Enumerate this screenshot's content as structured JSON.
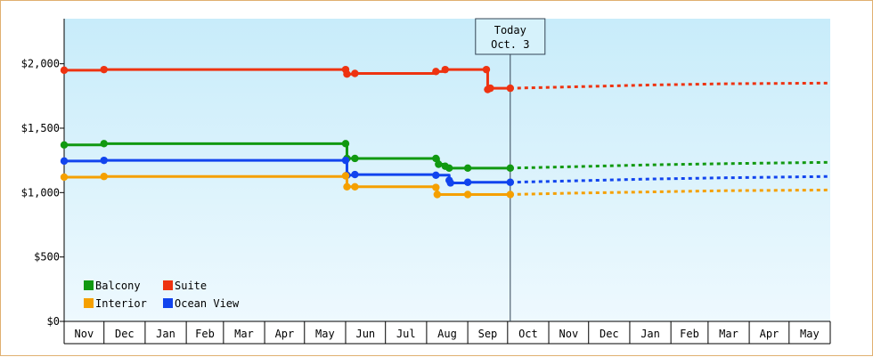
{
  "chart_data": {
    "type": "line",
    "title": "",
    "xlabel": "",
    "ylabel": "",
    "ylim": [
      0,
      2350
    ],
    "y_ticks": [
      {
        "value": 0,
        "label": "$0"
      },
      {
        "value": 500,
        "label": "$500"
      },
      {
        "value": 1000,
        "label": "$1,000"
      },
      {
        "value": 1500,
        "label": "$1,500"
      },
      {
        "value": 2000,
        "label": "$2,000"
      }
    ],
    "x_range": [
      "2012-11-01",
      "2014-05-31"
    ],
    "months": [
      {
        "label": "Nov",
        "start": "2012-11-01"
      },
      {
        "label": "Dec",
        "start": "2012-12-01"
      },
      {
        "label": "Jan",
        "start": "2013-01-01"
      },
      {
        "label": "Feb",
        "start": "2013-02-01"
      },
      {
        "label": "Mar",
        "start": "2013-03-01"
      },
      {
        "label": "Apr",
        "start": "2013-04-01"
      },
      {
        "label": "May",
        "start": "2013-05-01"
      },
      {
        "label": "Jun",
        "start": "2013-06-01"
      },
      {
        "label": "Jul",
        "start": "2013-07-01"
      },
      {
        "label": "Aug",
        "start": "2013-08-01"
      },
      {
        "label": "Sep",
        "start": "2013-09-01"
      },
      {
        "label": "Oct",
        "start": "2013-10-01"
      },
      {
        "label": "Nov",
        "start": "2013-11-01"
      },
      {
        "label": "Dec",
        "start": "2013-12-01"
      },
      {
        "label": "Jan",
        "start": "2014-01-01"
      },
      {
        "label": "Feb",
        "start": "2014-02-01"
      },
      {
        "label": "Mar",
        "start": "2014-03-01"
      },
      {
        "label": "Apr",
        "start": "2014-04-01"
      },
      {
        "label": "May",
        "start": "2014-05-01"
      }
    ],
    "today": {
      "date": "2013-10-03",
      "line1": "Today",
      "line2": "Oct. 3"
    },
    "series": [
      {
        "name": "Suite",
        "color": "#ee3311",
        "points": [
          [
            "2012-11-01",
            1950
          ],
          [
            "2012-12-01",
            1955
          ],
          [
            "2013-06-01",
            1955
          ],
          [
            "2013-06-02",
            1920
          ],
          [
            "2013-06-08",
            1925
          ],
          [
            "2013-08-08",
            1940
          ],
          [
            "2013-08-15",
            1955
          ],
          [
            "2013-09-15",
            1955
          ],
          [
            "2013-09-16",
            1800
          ],
          [
            "2013-09-18",
            1810
          ],
          [
            "2013-10-03",
            1810
          ]
        ],
        "forecast": [
          [
            "2013-10-03",
            1810
          ],
          [
            "2013-11-15",
            1820
          ],
          [
            "2014-01-15",
            1835
          ],
          [
            "2014-03-15",
            1845
          ],
          [
            "2014-05-31",
            1850
          ]
        ]
      },
      {
        "name": "Balcony",
        "color": "#119911",
        "points": [
          [
            "2012-11-01",
            1370
          ],
          [
            "2012-12-01",
            1380
          ],
          [
            "2013-06-01",
            1380
          ],
          [
            "2013-06-02",
            1265
          ],
          [
            "2013-06-08",
            1265
          ],
          [
            "2013-08-08",
            1265
          ],
          [
            "2013-08-10",
            1220
          ],
          [
            "2013-08-15",
            1205
          ],
          [
            "2013-08-18",
            1190
          ],
          [
            "2013-09-01",
            1190
          ],
          [
            "2013-10-03",
            1190
          ]
        ],
        "forecast": [
          [
            "2013-10-03",
            1190
          ],
          [
            "2013-11-15",
            1200
          ],
          [
            "2014-01-15",
            1215
          ],
          [
            "2014-03-15",
            1225
          ],
          [
            "2014-05-31",
            1235
          ]
        ]
      },
      {
        "name": "Ocean View",
        "color": "#1144ee",
        "points": [
          [
            "2012-11-01",
            1245
          ],
          [
            "2012-12-01",
            1250
          ],
          [
            "2013-06-01",
            1250
          ],
          [
            "2013-06-02",
            1135
          ],
          [
            "2013-06-08",
            1140
          ],
          [
            "2013-08-08",
            1135
          ],
          [
            "2013-08-18",
            1095
          ],
          [
            "2013-08-19",
            1075
          ],
          [
            "2013-09-01",
            1080
          ],
          [
            "2013-10-03",
            1080
          ]
        ],
        "forecast": [
          [
            "2013-10-03",
            1080
          ],
          [
            "2013-11-15",
            1090
          ],
          [
            "2014-01-15",
            1105
          ],
          [
            "2014-03-15",
            1115
          ],
          [
            "2014-05-31",
            1125
          ]
        ]
      },
      {
        "name": "Interior",
        "color": "#f5a000",
        "points": [
          [
            "2012-11-01",
            1120
          ],
          [
            "2012-12-01",
            1125
          ],
          [
            "2013-06-01",
            1130
          ],
          [
            "2013-06-02",
            1045
          ],
          [
            "2013-06-08",
            1045
          ],
          [
            "2013-08-08",
            1040
          ],
          [
            "2013-08-09",
            985
          ],
          [
            "2013-09-01",
            985
          ],
          [
            "2013-10-03",
            985
          ]
        ],
        "forecast": [
          [
            "2013-10-03",
            985
          ],
          [
            "2013-11-15",
            995
          ],
          [
            "2014-01-15",
            1005
          ],
          [
            "2014-03-15",
            1015
          ],
          [
            "2014-05-31",
            1020
          ]
        ]
      }
    ],
    "legend": {
      "placement": "bottom-left",
      "rows": [
        [
          {
            "name": "Balcony",
            "color": "#119911"
          },
          {
            "name": "Suite",
            "color": "#ee3311"
          }
        ],
        [
          {
            "name": "Interior",
            "color": "#f5a000"
          },
          {
            "name": "Ocean View",
            "color": "#1144ee"
          }
        ]
      ]
    },
    "forecast_style": "dotted",
    "background": {
      "top": "#c8ecfa",
      "bottom": "#eef9fe"
    },
    "grid": false
  }
}
